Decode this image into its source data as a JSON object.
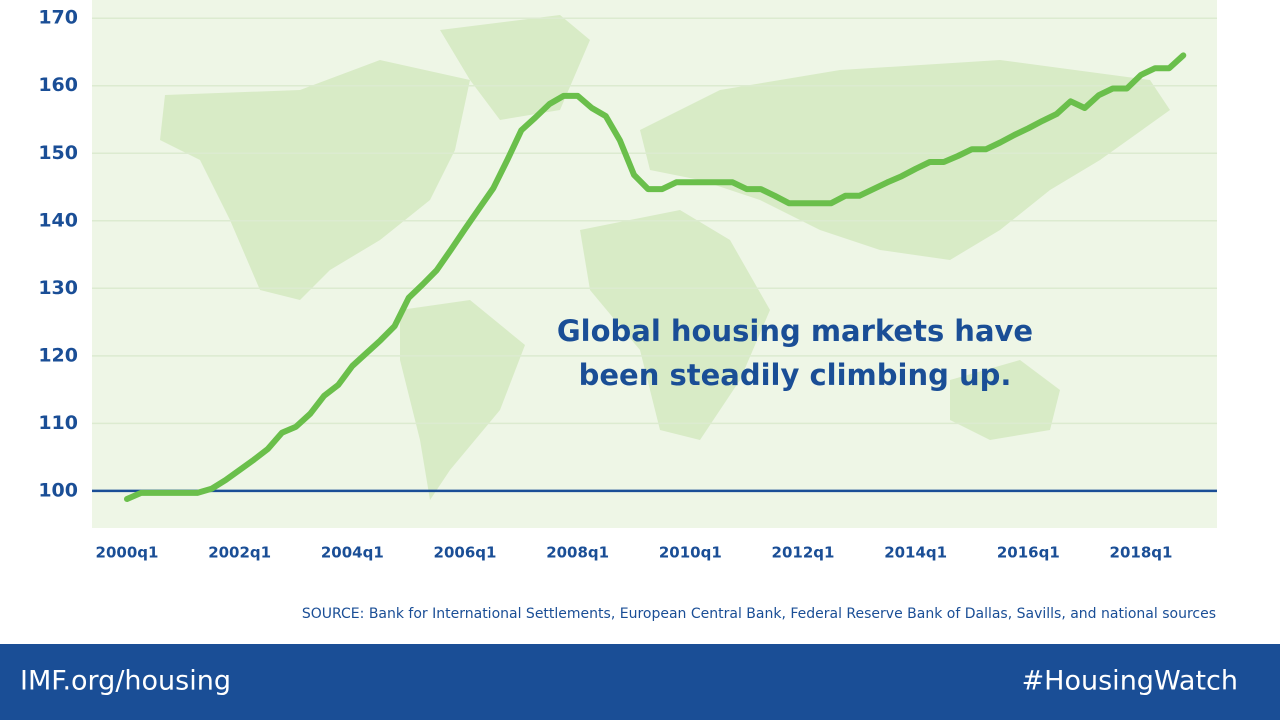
{
  "chart_data": {
    "type": "line",
    "annotation": [
      "Global housing markets have",
      "been steadily climbing up."
    ],
    "source": "SOURCE: Bank for International Settlements, European Central Bank, Federal Reserve Bank of Dallas, Savills, and national sources",
    "footer_left": "IMF.org/housing",
    "footer_right": "#HousingWatch",
    "categories": [
      "2000q1",
      null,
      null,
      null,
      null,
      null,
      null,
      null,
      "2002q1",
      null,
      null,
      null,
      null,
      null,
      null,
      null,
      "2004q1",
      null,
      null,
      null,
      null,
      null,
      null,
      null,
      "2006q1",
      null,
      null,
      null,
      null,
      null,
      null,
      null,
      "2008q1",
      null,
      null,
      null,
      null,
      null,
      null,
      null,
      "2010q1",
      null,
      null,
      null,
      null,
      null,
      null,
      null,
      "2012q1",
      null,
      null,
      null,
      null,
      null,
      null,
      null,
      "2014q1",
      null,
      null,
      null,
      null,
      null,
      null,
      null,
      "2016q1",
      null,
      null,
      null,
      null,
      null,
      null,
      null,
      "2018q1",
      null,
      null,
      null
    ],
    "series": [
      {
        "color": "#6abf4b",
        "values": [
          98.8,
          99.7,
          99.7,
          99.7,
          99.7,
          99.7,
          100.3,
          101.6,
          103.1,
          104.6,
          106.2,
          108.6,
          109.5,
          111.4,
          114.1,
          115.7,
          118.5,
          120.4,
          122.3,
          124.4,
          128.6,
          130.6,
          132.7,
          135.7,
          138.8,
          141.8,
          144.8,
          149.0,
          153.4,
          155.3,
          157.3,
          158.5,
          158.5,
          156.7,
          155.5,
          151.9,
          146.8,
          144.7,
          144.7,
          145.7,
          145.7,
          145.7,
          145.7,
          145.7,
          144.7,
          144.7,
          143.7,
          142.6,
          142.6,
          142.6,
          142.6,
          143.7,
          143.7,
          144.7,
          145.7,
          146.6,
          147.7,
          148.7,
          148.7,
          149.6,
          150.6,
          150.6,
          151.6,
          152.7,
          153.7,
          154.8,
          155.8,
          157.7,
          156.7,
          158.6,
          159.6,
          159.6,
          161.6,
          162.6,
          162.6,
          164.5
        ]
      }
    ],
    "ylim": [
      94.5,
      172.7
    ],
    "yticks": [
      100,
      110,
      120,
      130,
      140,
      150,
      160,
      170
    ],
    "reference_line": 100,
    "grid": true
  }
}
